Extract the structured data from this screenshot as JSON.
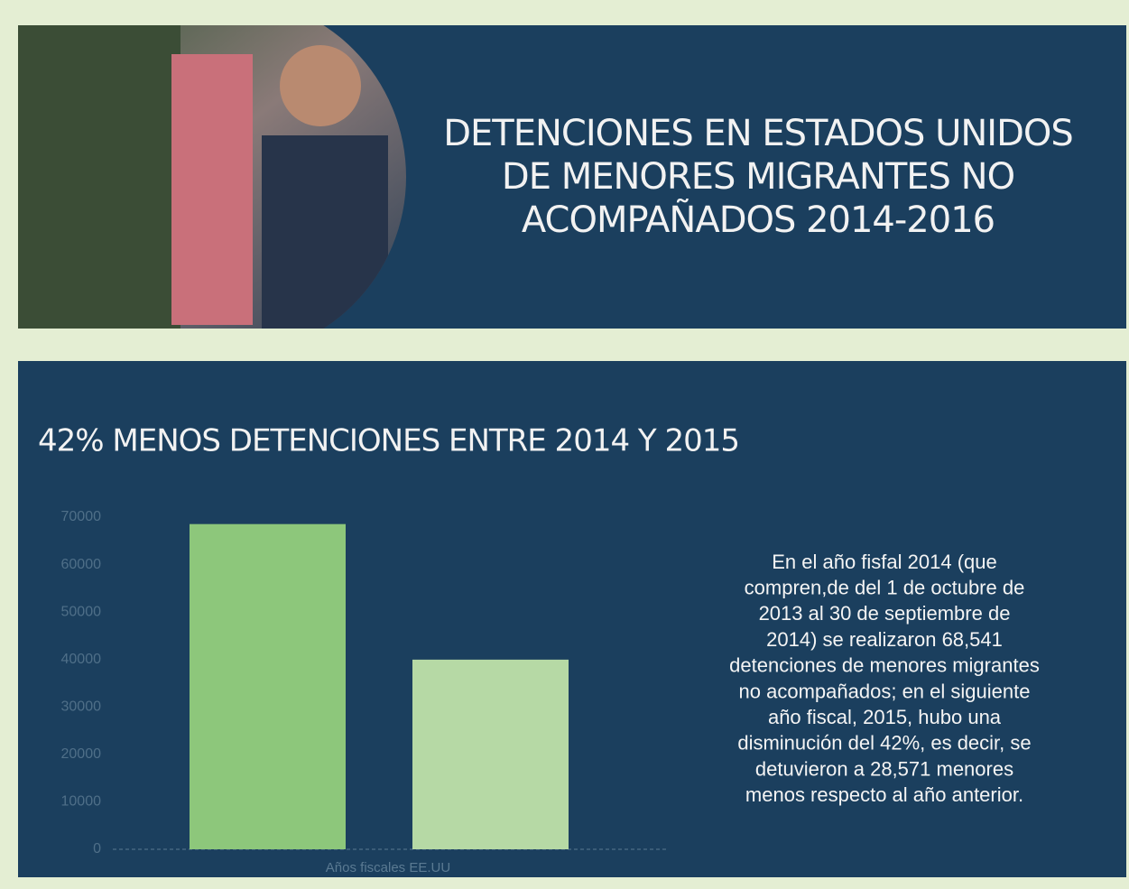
{
  "header": {
    "title_lines": [
      "DETENCIONES EN ESTADOS UNIDOS",
      "DE MENORES MIGRANTES NO",
      "ACOMPAÑADOS 2014-2016"
    ]
  },
  "chart_data": {
    "type": "bar",
    "title": "42%  MENOS DETENCIONES ENTRE 2014 Y 2015",
    "x_label": "Años fiscales EE.UU",
    "categories": [
      null,
      null
    ],
    "series": [
      {
        "name": null,
        "colors": [
          "#8dc77b",
          "#b6d9a5"
        ],
        "values": [
          68541,
          39970
        ]
      }
    ],
    "ylim": [
      0,
      70000
    ],
    "yticks": [
      0,
      10000,
      20000,
      30000,
      40000,
      50000,
      60000,
      70000
    ],
    "grid": false
  },
  "note_lines": [
    "En el año fisfal 2014 (que",
    "compren,de del 1 de octubre de",
    "2013  al 30 de  septiembre de",
    "2014) se realizaron 68,541",
    "detenciones de menores migrantes",
    "no acompañados; en el siguiente",
    "año fiscal, 2015, hubo una",
    "disminución del 42%, es decir, se",
    "detuvieron a 28,571 menores",
    "menos respecto al año anterior."
  ]
}
